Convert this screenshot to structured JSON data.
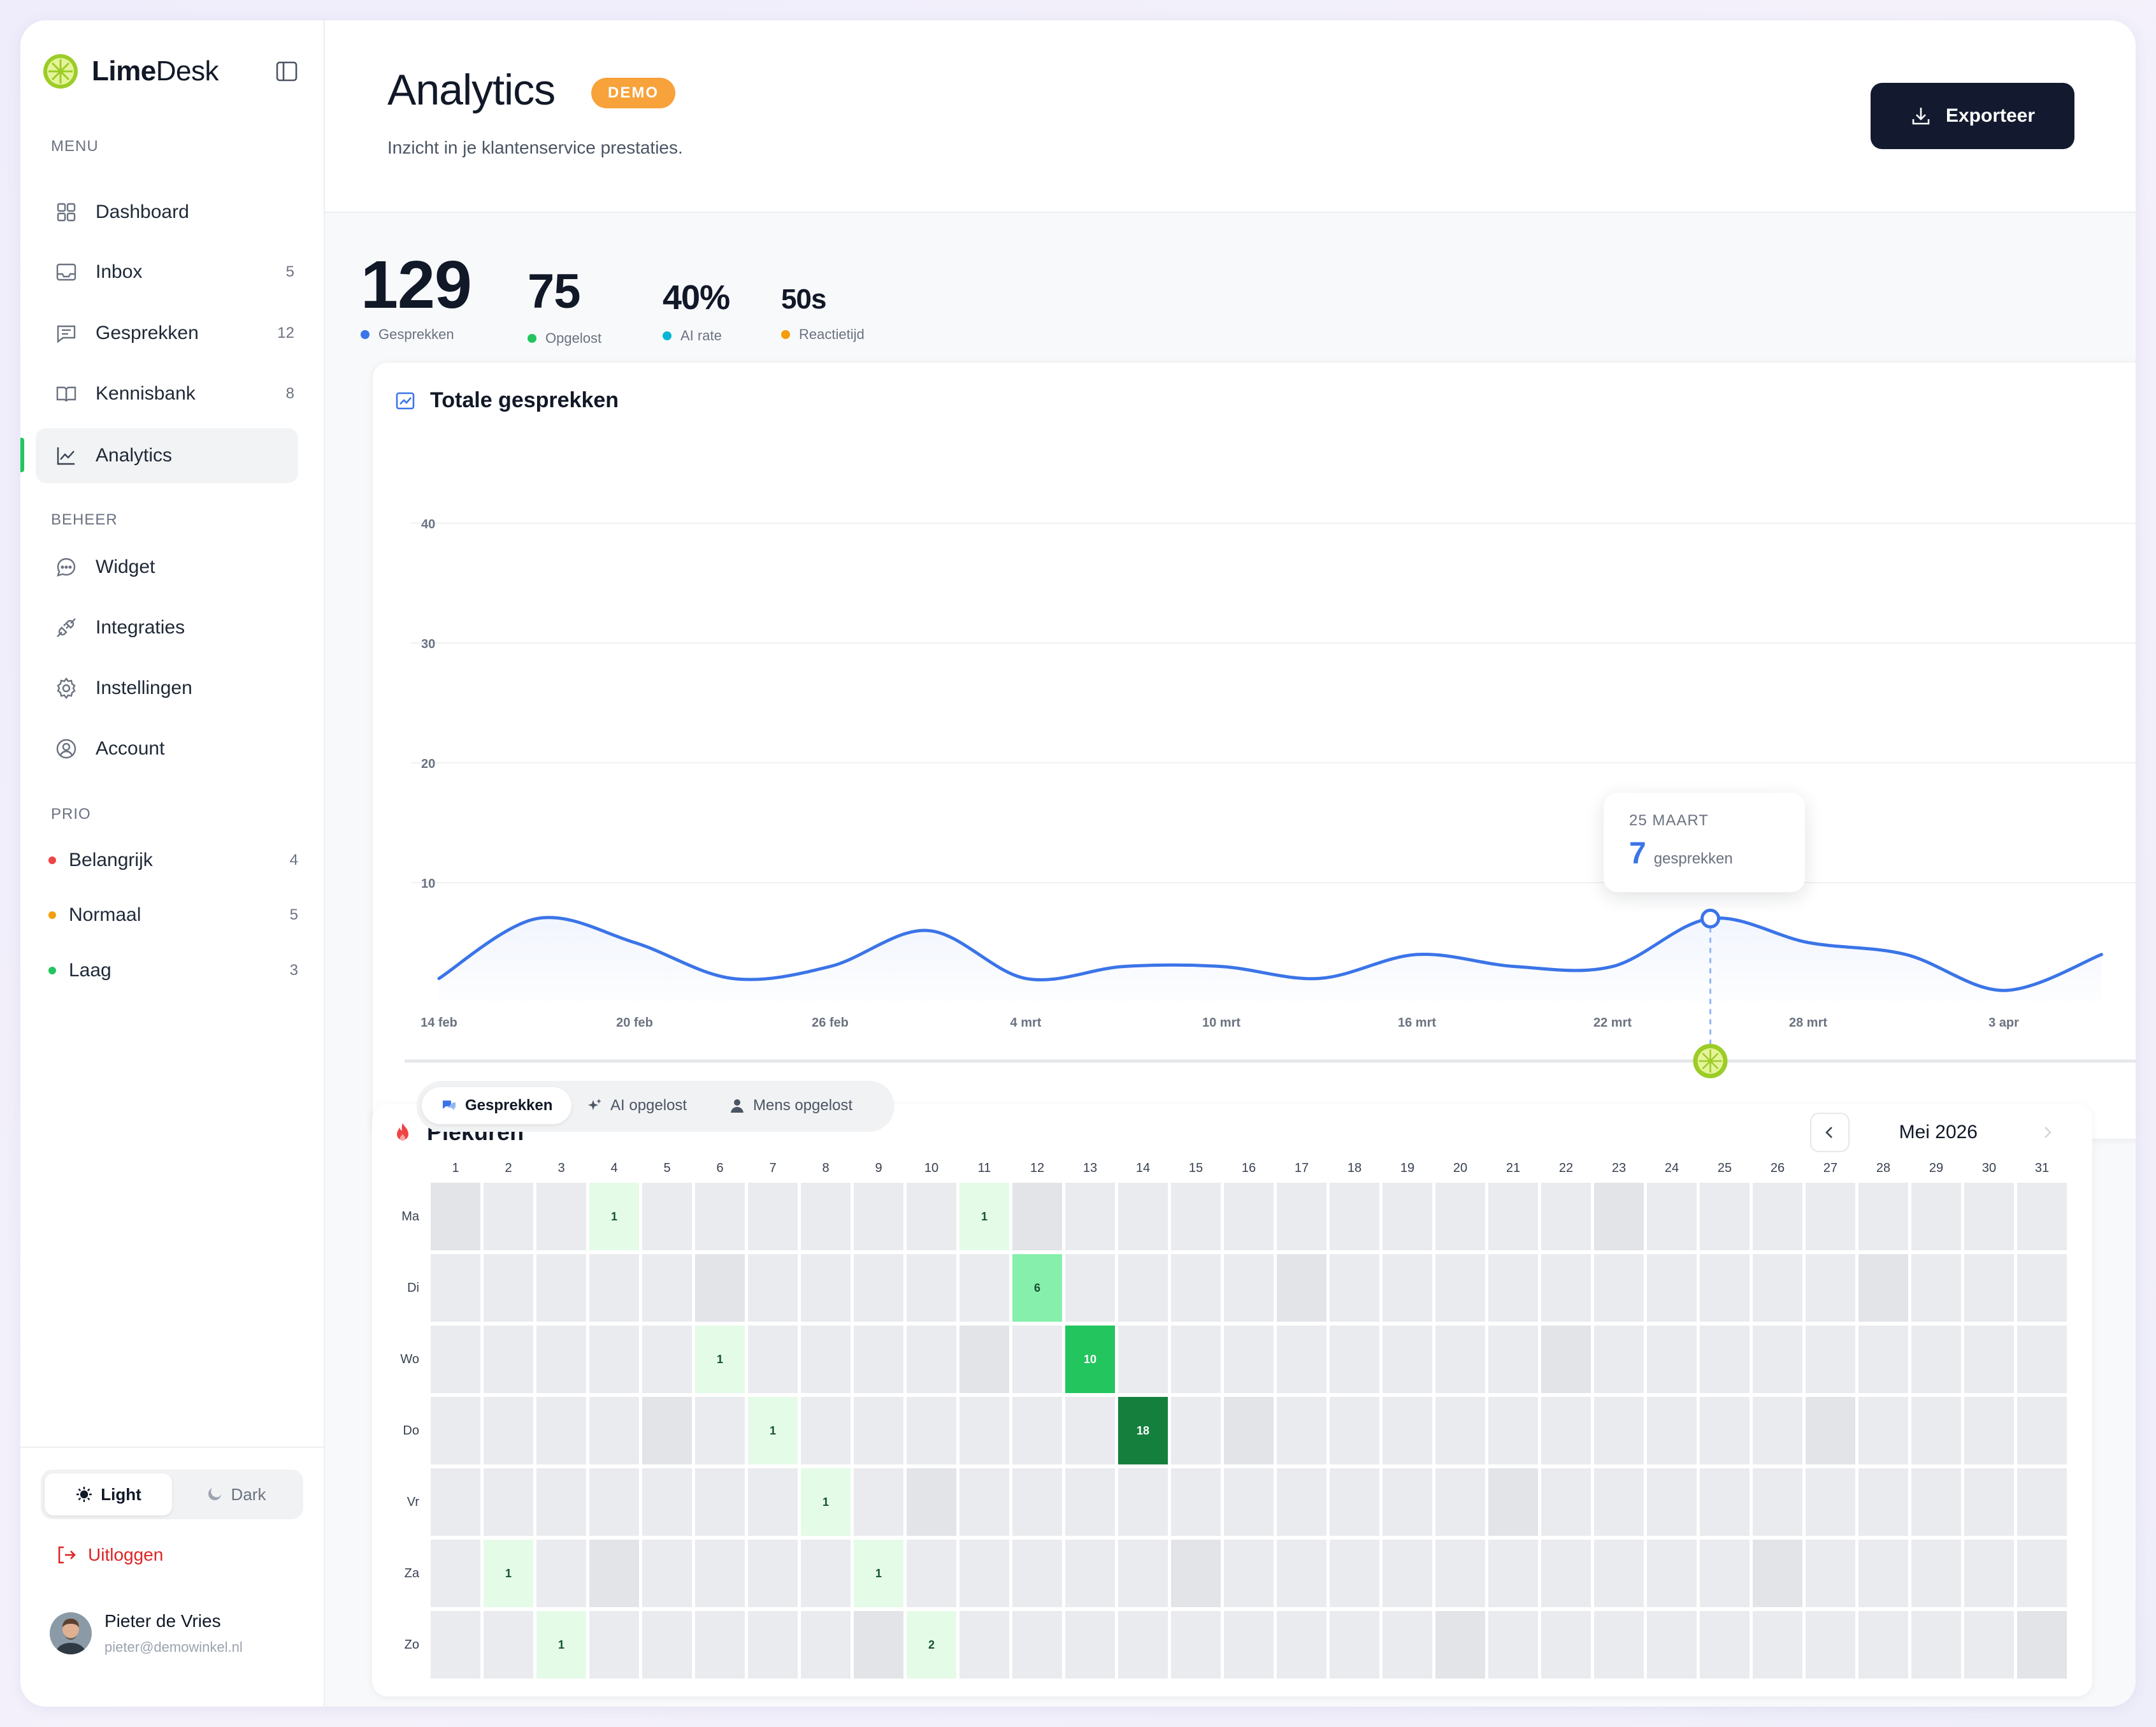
{
  "app": {
    "brand_bold": "Lime",
    "brand_light": "Desk"
  },
  "sidebar": {
    "menu_label": "MENU",
    "menu": [
      {
        "label": "Dashboard",
        "icon": "grid-icon",
        "count": ""
      },
      {
        "label": "Inbox",
        "icon": "inbox-icon",
        "count": "5"
      },
      {
        "label": "Gesprekken",
        "icon": "chat-icon",
        "count": "12"
      },
      {
        "label": "Kennisbank",
        "icon": "book-icon",
        "count": "8"
      },
      {
        "label": "Analytics",
        "icon": "trend-icon",
        "count": "",
        "active": true
      }
    ],
    "beheer_label": "BEHEER",
    "beheer": [
      {
        "label": "Widget",
        "icon": "chat-bubble-icon"
      },
      {
        "label": "Integraties",
        "icon": "plug-icon"
      },
      {
        "label": "Instellingen",
        "icon": "gear-icon"
      },
      {
        "label": "Account",
        "icon": "user-circle-icon"
      }
    ],
    "prio_label": "PRIO",
    "prio": [
      {
        "label": "Belangrijk",
        "count": "4",
        "color": "#ef4444"
      },
      {
        "label": "Normaal",
        "count": "5",
        "color": "#f59e0b"
      },
      {
        "label": "Laag",
        "count": "3",
        "color": "#22c55e"
      }
    ],
    "theme": {
      "light": "Light",
      "dark": "Dark"
    },
    "logout": "Uitloggen",
    "user": {
      "name": "Pieter de Vries",
      "email": "pieter@demowinkel.nl"
    }
  },
  "header": {
    "title": "Analytics",
    "badge": "DEMO",
    "subtitle": "Inzicht in je klantenservice prestaties.",
    "export": "Exporteer"
  },
  "stats": [
    {
      "value": "129",
      "label": "Gesprekken",
      "color": "#3b74e8"
    },
    {
      "value": "75",
      "label": "Opgelost",
      "color": "#22c55e"
    },
    {
      "value": "40%",
      "label": "AI rate",
      "color": "#06b6d4"
    },
    {
      "value": "50s",
      "label": "Reactietijd",
      "color": "#f59e0b"
    }
  ],
  "chart": {
    "title": "Totale gesprekken",
    "tooltip": {
      "date": "25 MAART",
      "value": "7",
      "unit": "gesprekken"
    },
    "tabs": [
      "Gesprekken",
      "AI opgelost",
      "Mens opgelost"
    ]
  },
  "chart_data": {
    "type": "line",
    "title": "Totale gesprekken",
    "x_ticks": [
      "14 feb",
      "20 feb",
      "26 feb",
      "4 mrt",
      "10 mrt",
      "16 mrt",
      "22 mrt",
      "28 mrt",
      "3 apr"
    ],
    "y_ticks": [
      10,
      20,
      30,
      40
    ],
    "ylim": [
      0,
      44
    ],
    "series": [
      {
        "name": "Gesprekken",
        "color": "#3b74e8",
        "points": [
          [
            "14 feb",
            2
          ],
          [
            "17 feb",
            7
          ],
          [
            "20 feb",
            5
          ],
          [
            "23 feb",
            2
          ],
          [
            "26 feb",
            3
          ],
          [
            "1 mrt",
            6
          ],
          [
            "4 mrt",
            2
          ],
          [
            "7 mrt",
            3
          ],
          [
            "10 mrt",
            3
          ],
          [
            "13 mrt",
            2
          ],
          [
            "16 mrt",
            4
          ],
          [
            "19 mrt",
            3
          ],
          [
            "22 mrt",
            3
          ],
          [
            "25 mrt",
            7
          ],
          [
            "28 mrt",
            5
          ],
          [
            "31 mrt",
            4
          ],
          [
            "3 apr",
            1
          ],
          [
            "6 apr",
            4
          ]
        ]
      }
    ],
    "grid": true
  },
  "heatmap": {
    "title": "Piekuren",
    "month": "Mei 2026",
    "rows": [
      "Ma",
      "Di",
      "Wo",
      "Do",
      "Vr",
      "Za",
      "Zo"
    ],
    "days": [
      "1",
      "2",
      "3",
      "4",
      "5",
      "6",
      "7",
      "8",
      "9",
      "10",
      "11",
      "12",
      "13",
      "14",
      "15",
      "16",
      "17",
      "18",
      "19",
      "20",
      "21",
      "22",
      "23",
      "24",
      "25",
      "26",
      "27",
      "28",
      "29",
      "30",
      "31"
    ],
    "values": [
      {
        "row": 0,
        "day": 4,
        "value": 1
      },
      {
        "row": 0,
        "day": 11,
        "value": 1
      },
      {
        "row": 1,
        "day": 12,
        "value": 6
      },
      {
        "row": 2,
        "day": 6,
        "value": 1
      },
      {
        "row": 2,
        "day": 13,
        "value": 10
      },
      {
        "row": 3,
        "day": 7,
        "value": 1
      },
      {
        "row": 3,
        "day": 14,
        "value": 18
      },
      {
        "row": 4,
        "day": 8,
        "value": 1
      },
      {
        "row": 5,
        "day": 2,
        "value": 1
      },
      {
        "row": 5,
        "day": 9,
        "value": 1
      },
      {
        "row": 6,
        "day": 3,
        "value": 1
      },
      {
        "row": 6,
        "day": 10,
        "value": 2
      }
    ]
  }
}
